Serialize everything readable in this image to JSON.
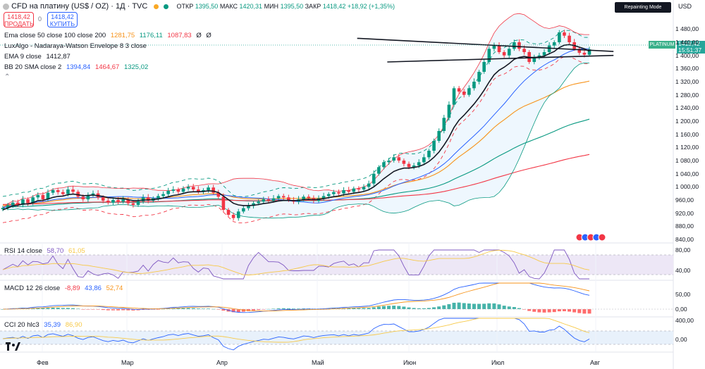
{
  "header": {
    "title": "CFD на платину (US$ / OZ) · 1Д · TVC",
    "open_label": "ОТКР",
    "open_value": "1395,50",
    "high_label": "МАКС",
    "high_value": "1420,31",
    "low_label": "МИН",
    "low_value": "1395,50",
    "close_label": "ЗАКР",
    "close_value": "1418,42",
    "change": "+18,92 (+1,35%)"
  },
  "trade": {
    "sell_price": "1418,42",
    "sell_label": "ПРОДАТЬ",
    "spread": "0",
    "buy_price": "1418,42",
    "buy_label": "КУПИТЬ"
  },
  "badges": {
    "repainting": "Repainting Mode Enabled",
    "currency": "USD"
  },
  "indicators": [
    {
      "label": "Ema close 50 close 100 close 200",
      "values": [
        {
          "text": "1281,75",
          "color": "#f7931a"
        },
        {
          "text": "1176,11",
          "color": "#089981"
        },
        {
          "text": "1087,83",
          "color": "#f23645"
        },
        {
          "text": "Ø",
          "color": "#131722"
        },
        {
          "text": "Ø",
          "color": "#131722"
        }
      ]
    },
    {
      "label": "LuxAlgo - Nadaraya-Watson Envelope 8 3 close",
      "values": []
    },
    {
      "label": "EMA 9 close",
      "values": [
        {
          "text": "1412,87",
          "color": "#131722"
        }
      ]
    },
    {
      "label": "BB 20 SMA close 2",
      "values": [
        {
          "text": "1394,84",
          "color": "#2962ff"
        },
        {
          "text": "1464,67",
          "color": "#f23645"
        },
        {
          "text": "1325,02",
          "color": "#089981"
        }
      ]
    }
  ],
  "price_tag": {
    "name": "PLATINUM",
    "price": "1418,42",
    "time": "15:51:37"
  },
  "rsi": {
    "label": "RSI 14 close",
    "v1": "58,70",
    "v2": "61,05",
    "axis": [
      "80,00",
      "40,00"
    ]
  },
  "macd": {
    "label": "MACD 12 26 close",
    "v1": "-8,89",
    "v2": "43,86",
    "v3": "52,74",
    "axis": [
      "50,00",
      "0,00"
    ]
  },
  "cci": {
    "label": "CCI 20 hlc3",
    "v1": "35,39",
    "v2": "86,90",
    "axis": [
      "400,00",
      "0,00"
    ]
  },
  "chart_data": {
    "type": "candlestick",
    "symbol": "PLATINUM",
    "y_range": [
      840,
      1500
    ],
    "y_ticks": [
      1480,
      1440,
      1400,
      1360,
      1320,
      1280,
      1240,
      1200,
      1160,
      1120,
      1080,
      1040,
      1000,
      960,
      920,
      880,
      840
    ],
    "y_tick_labels": [
      "1 480,00",
      "1 440,00",
      "1 400,00",
      "1 360,00",
      "1 320,00",
      "1 280,00",
      "1 240,00",
      "1 200,00",
      "1 160,00",
      "1 120,00",
      "1 080,00",
      "1 040,00",
      "1 000,00",
      "960,00",
      "920,00",
      "880,00",
      "840,00"
    ],
    "x_labels": [
      "Фев",
      "Мар",
      "Апр",
      "Май",
      "Июн",
      "Июл",
      "Авг"
    ],
    "closes": [
      936,
      944,
      952,
      945,
      962,
      950,
      968,
      975,
      962,
      982,
      990,
      984,
      978,
      992,
      985,
      970,
      962,
      975,
      980,
      968,
      958,
      952,
      960,
      955,
      962,
      950,
      945,
      956,
      968,
      958,
      965,
      972,
      978,
      988,
      992,
      985,
      995,
      1000,
      992,
      985,
      990,
      998,
      982,
      970,
      930,
      915,
      905,
      925,
      935,
      942,
      950,
      955,
      962,
      958,
      965,
      972,
      968,
      960,
      955,
      962,
      970,
      966,
      958,
      965,
      972,
      978,
      984,
      980,
      990,
      985,
      995,
      992,
      1000,
      1010,
      1040,
      1060,
      1075,
      1080,
      1090,
      1080,
      1070,
      1060,
      1065,
      1075,
      1090,
      1110,
      1140,
      1170,
      1210,
      1250,
      1300,
      1290,
      1280,
      1300,
      1320,
      1350,
      1380,
      1420,
      1430,
      1410,
      1400,
      1420,
      1440,
      1420,
      1410,
      1380,
      1395,
      1400,
      1410,
      1430,
      1440,
      1470,
      1460,
      1440,
      1420,
      1408,
      1402,
      1418.42
    ],
    "ema9": [
      930,
      936,
      942,
      944,
      948,
      948,
      952,
      958,
      959,
      963,
      968,
      971,
      972,
      976,
      978,
      976,
      973,
      974,
      975,
      973,
      971,
      967,
      966,
      964,
      964,
      961,
      958,
      958,
      960,
      960,
      961,
      963,
      966,
      970,
      974,
      976,
      980,
      984,
      985,
      985,
      986,
      988,
      987,
      983,
      972,
      961,
      950,
      945,
      943,
      943,
      944,
      946,
      949,
      951,
      954,
      957,
      959,
      959,
      958,
      959,
      961,
      962,
      961,
      962,
      964,
      967,
      970,
      972,
      976,
      978,
      981,
      983,
      986,
      991,
      1000,
      1012,
      1025,
      1036,
      1047,
      1053,
      1057,
      1057,
      1059,
      1062,
      1068,
      1077,
      1090,
      1106,
      1127,
      1151,
      1181,
      1203,
      1218,
      1235,
      1252,
      1272,
      1294,
      1319,
      1341,
      1355,
      1364,
      1375,
      1388,
      1394,
      1397,
      1394,
      1394,
      1395,
      1398,
      1405,
      1412,
      1424,
      1431,
      1433,
      1430,
      1425,
      1420,
      1412.87
    ],
    "trendlines": [
      {
        "from": [
          96,
          1452
        ],
        "to": [
          119,
          1412
        ]
      },
      {
        "from": [
          102,
          1380
        ],
        "to": [
          119,
          1400
        ]
      }
    ]
  }
}
